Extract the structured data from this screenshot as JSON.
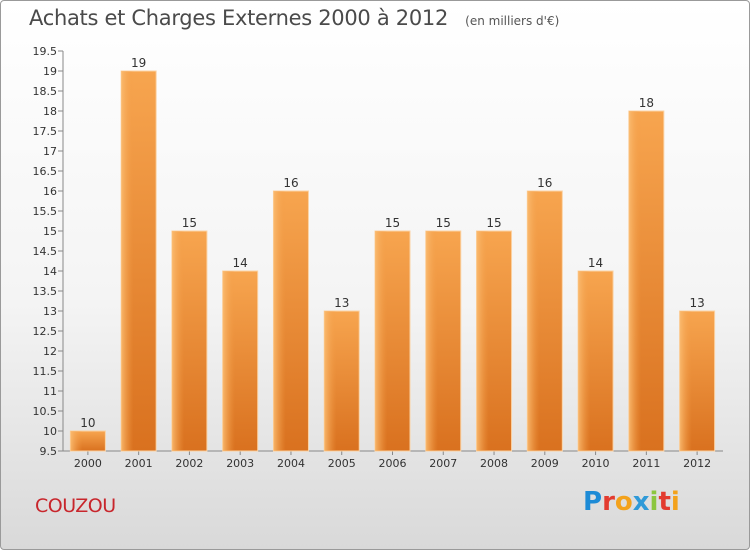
{
  "chart_data": {
    "type": "bar",
    "title": "Achats et Charges Externes 2000 à 2012",
    "subtitle": "(en milliers d'€)",
    "categories": [
      "2000",
      "2001",
      "2002",
      "2003",
      "2004",
      "2005",
      "2006",
      "2007",
      "2008",
      "2009",
      "2010",
      "2011",
      "2012"
    ],
    "values": [
      10,
      19,
      15,
      14,
      16,
      13,
      15,
      15,
      15,
      16,
      14,
      18,
      13
    ],
    "ylim": [
      9.5,
      19.5
    ],
    "yticks": [
      "9.5",
      "10",
      "10.5",
      "11",
      "11.5",
      "12",
      "12.5",
      "13",
      "13.5",
      "14",
      "14.5",
      "15",
      "15.5",
      "16",
      "16.5",
      "17",
      "17.5",
      "18",
      "18.5",
      "19",
      "19.5"
    ],
    "grid": false,
    "bar_color": "#f0923a"
  },
  "commune": "COUZOU",
  "logo": {
    "letters": [
      {
        "ch": "P",
        "color": "#1d8bd6"
      },
      {
        "ch": "r",
        "color": "#e33b2f"
      },
      {
        "ch": "o",
        "color": "#f3a21c"
      },
      {
        "ch": "x",
        "color": "#2f9ad8"
      },
      {
        "ch": "i",
        "color": "#8cc63f"
      },
      {
        "ch": "t",
        "color": "#e33b2f"
      },
      {
        "ch": "i",
        "color": "#f3a21c"
      }
    ]
  }
}
